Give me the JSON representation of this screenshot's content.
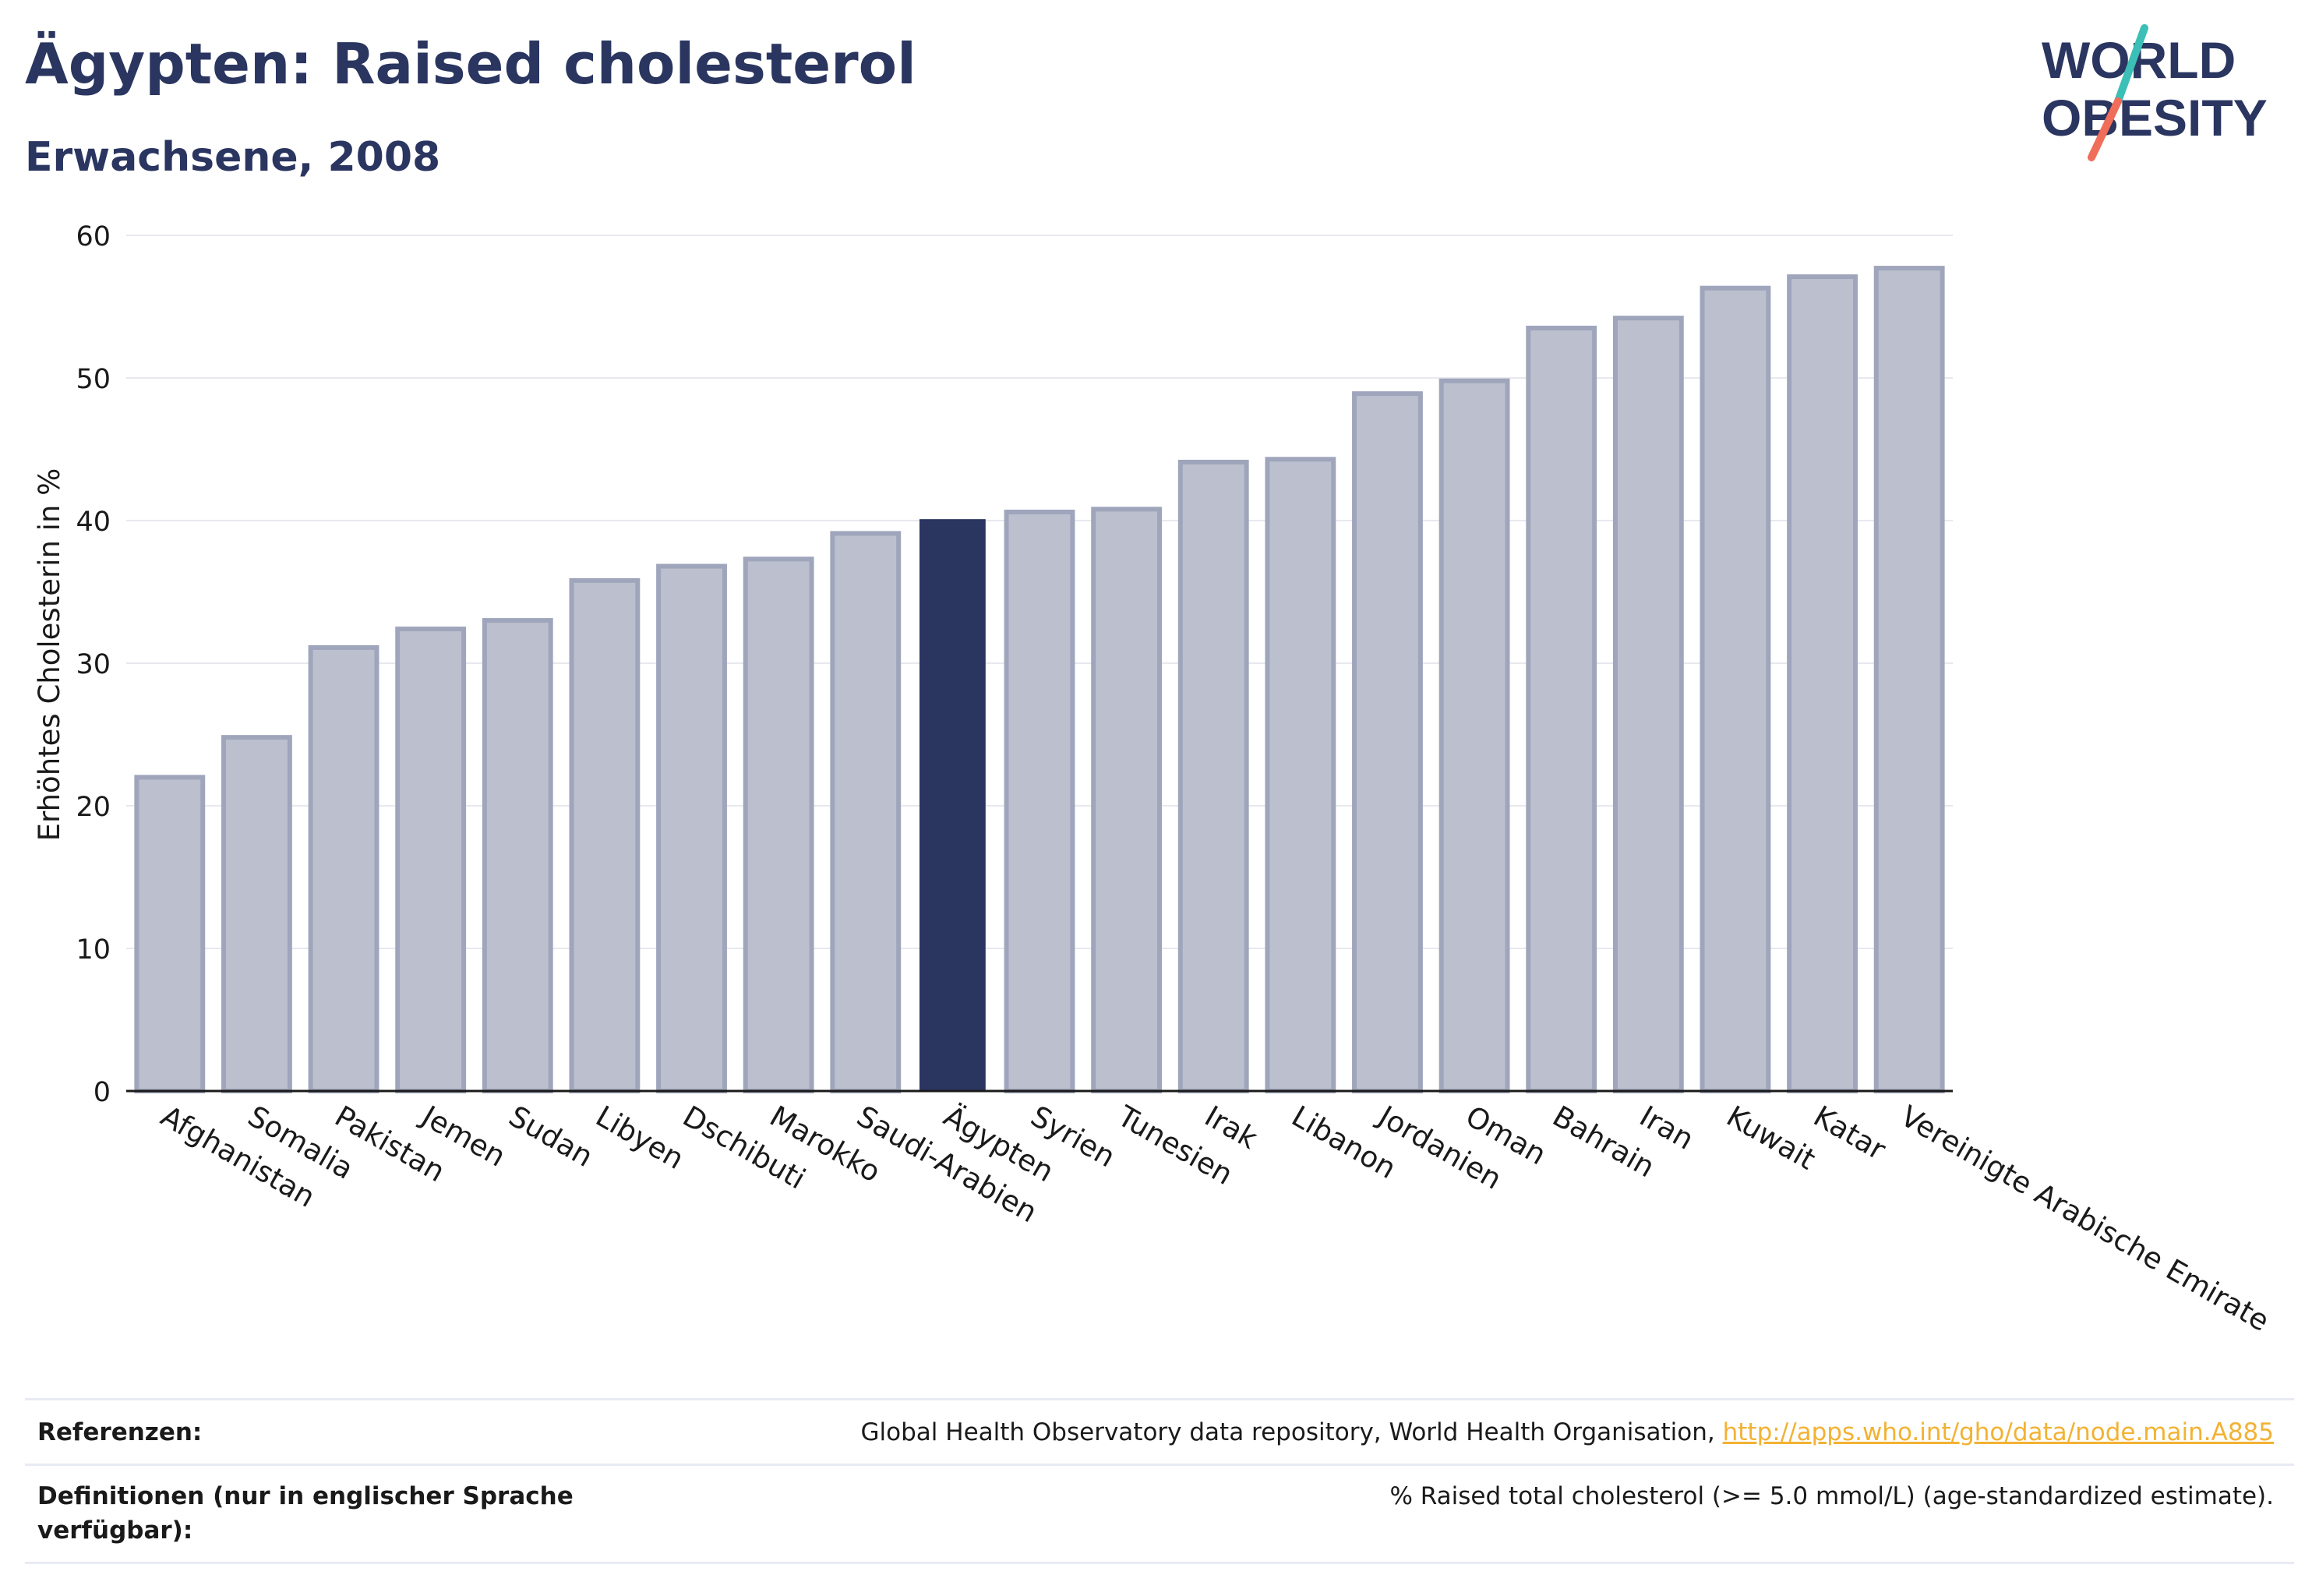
{
  "header": {
    "title": "Ägypten: Raised cholesterol",
    "subtitle": "Erwachsene, 2008"
  },
  "logo": {
    "line1": "WORLD",
    "line2": "OBESITY",
    "accent_teal": "#3bbfb6",
    "accent_coral": "#f06d5a",
    "text_color": "#2a3560"
  },
  "chart_data": {
    "type": "bar",
    "title": "Ägypten: Raised cholesterol",
    "subtitle": "Erwachsene, 2008",
    "ylabel": "Erhöhtes Cholesterin in %",
    "xlabel": "",
    "ylim": [
      0,
      60
    ],
    "yticks": [
      0,
      10,
      20,
      30,
      40,
      50,
      60
    ],
    "grid": true,
    "highlight": "Ägypten",
    "colors": {
      "bar": "#bcc0ce",
      "bar_border": "#9fa5bb",
      "highlight": "#2a3560",
      "grid": "#e8e9ef",
      "axis": "#1a1a1a"
    },
    "categories": [
      "Afghanistan",
      "Somalia",
      "Pakistan",
      "Jemen",
      "Sudan",
      "Libyen",
      "Dschibuti",
      "Marokko",
      "Saudi-Arabien",
      "Ägypten",
      "Syrien",
      "Tunesien",
      "Irak",
      "Libanon",
      "Jordanien",
      "Oman",
      "Bahrain",
      "Iran",
      "Kuwait",
      "Katar",
      "Vereinigte Arabische Emirate"
    ],
    "values": [
      22.0,
      24.8,
      31.1,
      32.4,
      33.0,
      35.8,
      36.8,
      37.3,
      39.1,
      40.1,
      40.6,
      40.8,
      44.1,
      44.3,
      48.9,
      49.8,
      53.5,
      54.2,
      56.3,
      57.1,
      57.7
    ]
  },
  "footer": {
    "references_label": "Referenzen:",
    "references_text": "Global Health Observatory data repository, World Health Organisation, ",
    "references_link": "http://apps.who.int/gho/data/node.main.A885",
    "definitions_label": "Definitionen (nur in englischer Sprache verfügbar):",
    "definitions_text": "% Raised total cholesterol (>= 5.0 mmol/L) (age-standardized estimate)."
  }
}
